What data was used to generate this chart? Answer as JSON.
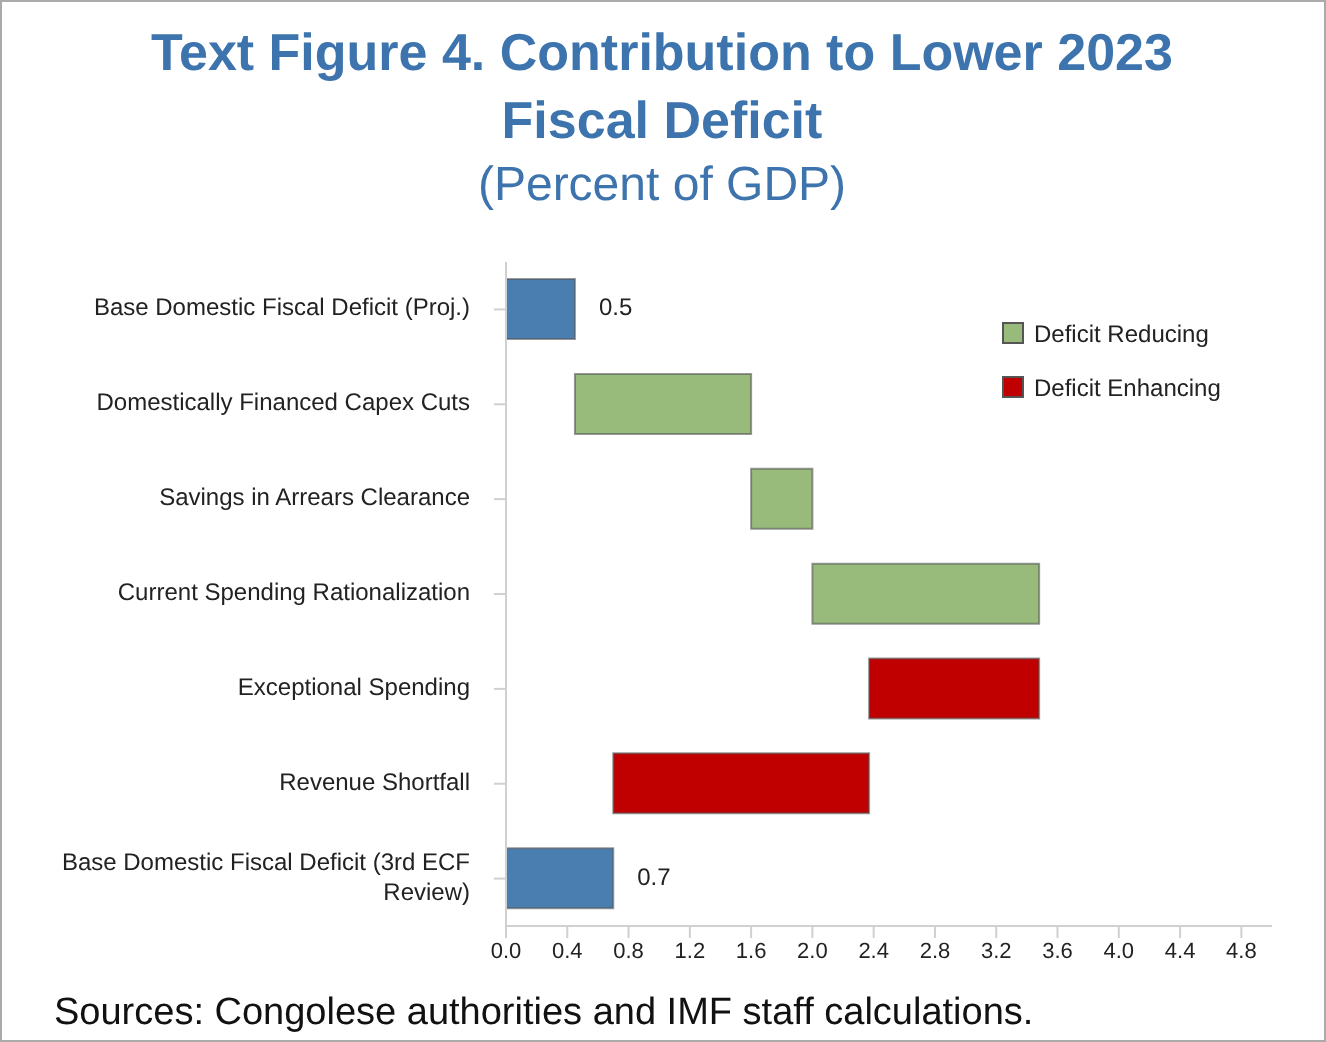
{
  "chart_data": {
    "type": "bar",
    "orientation": "horizontal",
    "title": "Text Figure 4. Contribution to Lower 2023 Fiscal Deficit",
    "subtitle": "(Percent of GDP)",
    "categories": [
      "Base Domestic Fiscal Deficit (Proj.)",
      "Domestically Financed Capex Cuts",
      "Savings in Arrears Clearance",
      "Current Spending Rationalization",
      "Exceptional Spending",
      "Revenue Shortfall",
      "Base Domestic Fiscal Deficit (3rd ECF Review)"
    ],
    "series": [
      {
        "color": "#4a7eb0",
        "values": [
          0.45,
          null,
          null,
          null,
          null,
          null,
          0.7
        ],
        "base": [
          0,
          null,
          null,
          null,
          null,
          null,
          0
        ],
        "value_labels": [
          "0.5",
          null,
          null,
          null,
          null,
          null,
          "0.7"
        ]
      },
      {
        "name": "Deficit Reducing",
        "color": "#98bb7b",
        "values": [
          null,
          1.15,
          0.4,
          1.48,
          null,
          null,
          null
        ],
        "base": [
          null,
          0.45,
          1.6,
          2.0,
          null,
          null,
          null
        ]
      },
      {
        "name": "Deficit Enhancing",
        "color": "#c00000",
        "values": [
          null,
          null,
          null,
          null,
          1.11,
          1.67,
          null
        ],
        "base": [
          null,
          null,
          null,
          null,
          2.37,
          0.7,
          null
        ]
      }
    ],
    "xlim": [
      0,
      5
    ],
    "xticks": [
      {
        "value": 0,
        "label": "0.0"
      },
      0.4,
      0.8,
      1.2,
      1.6,
      {
        "value": 2,
        "label": "2.0"
      },
      2.4,
      2.8,
      3.2,
      3.6,
      {
        "value": 4,
        "label": "4.0"
      },
      4.4,
      4.8
    ],
    "grid": false,
    "legend": "top right",
    "annotations": [
      "Sources: Congolese authorities and IMF staff calculations."
    ]
  }
}
